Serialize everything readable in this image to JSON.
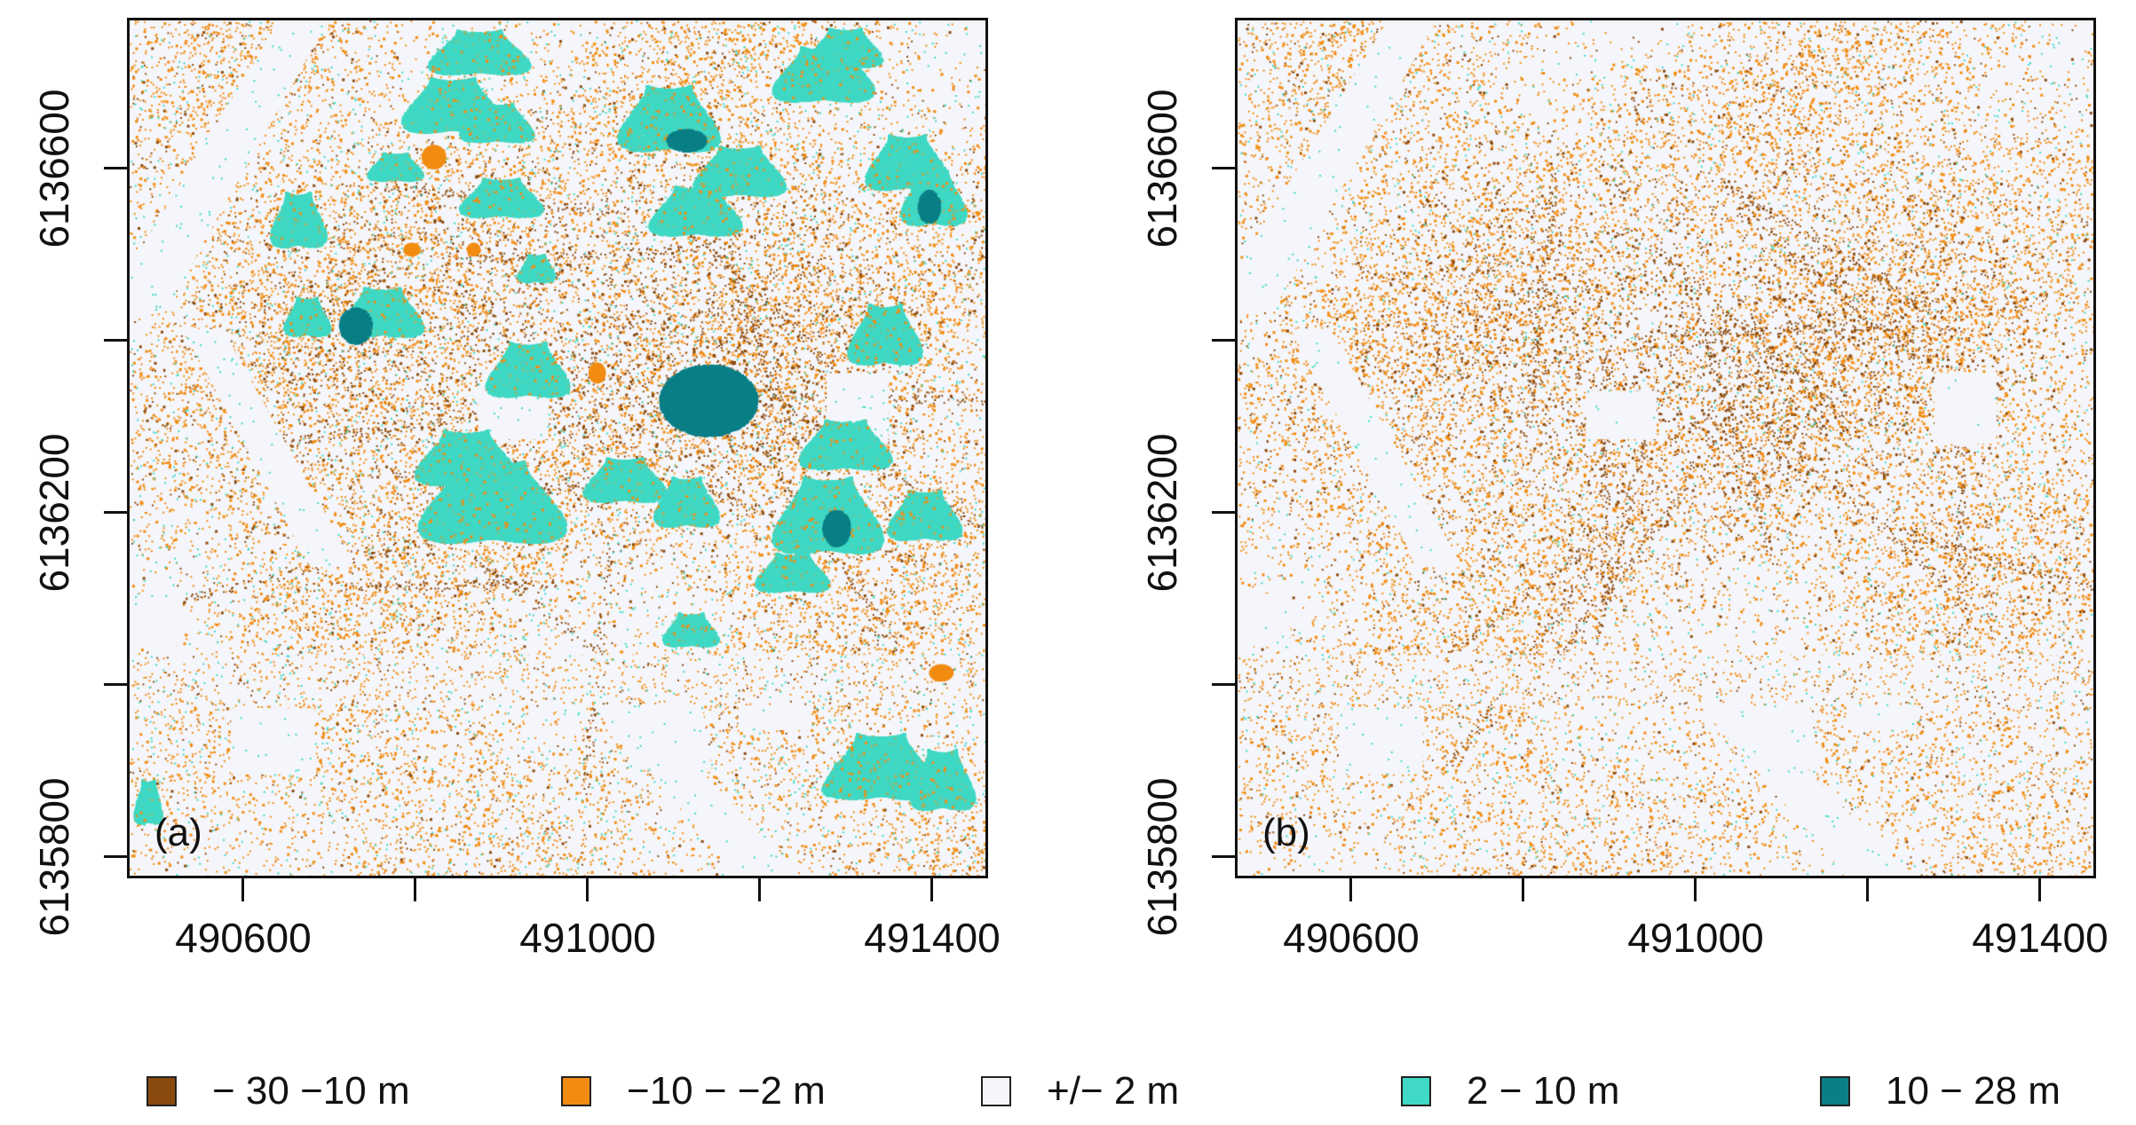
{
  "panels": [
    {
      "id": "a",
      "label": "(a)"
    },
    {
      "id": "b",
      "label": "(b)"
    }
  ],
  "x_axis": {
    "range": [
      490465,
      491465
    ],
    "ticks": [
      490600,
      490800,
      491000,
      491200,
      491400
    ],
    "labels": [
      "490600",
      "",
      "491000",
      "",
      "491400"
    ]
  },
  "y_axis": {
    "range": [
      6135775,
      6136775
    ],
    "ticks": [
      6135800,
      6136000,
      6136200,
      6136400,
      6136600
    ],
    "labels": [
      "6135800",
      "",
      "6136200",
      "",
      "6136600"
    ]
  },
  "legend": [
    {
      "label": "− 30 −10 m",
      "color": "#8b4a0d"
    },
    {
      "label": "−10 − −2 m",
      "color": "#f28c10"
    },
    {
      "label": "+/− 2 m",
      "color": "#f5f6fb"
    },
    {
      "label": "2 − 10 m",
      "color": "#3fd9c5"
    },
    {
      "label": "10 − 28 m",
      "color": "#0a7f86"
    }
  ]
}
